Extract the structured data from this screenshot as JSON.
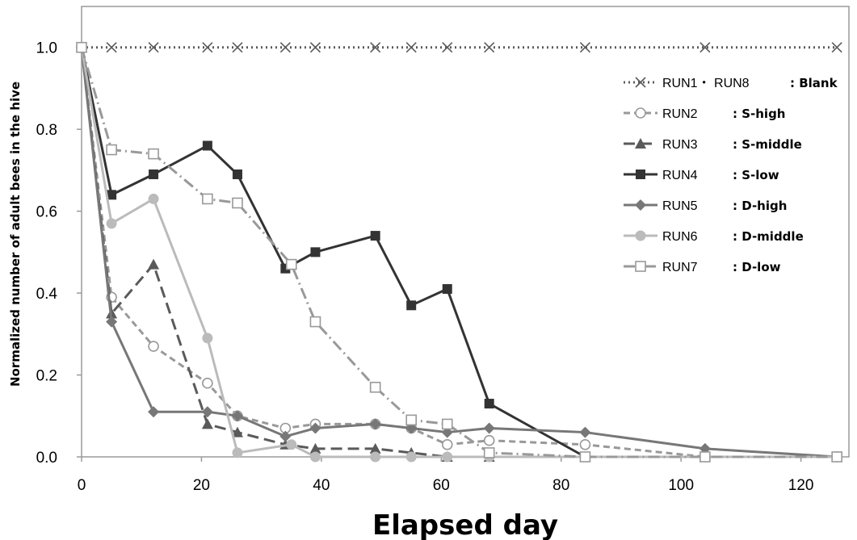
{
  "chart_data": {
    "type": "line",
    "xlabel": "Elapsed day",
    "ylabel": "Normalized number of adult bees in the hive",
    "xlim": [
      0,
      128
    ],
    "ylim": [
      0,
      1.1
    ],
    "xticks": [
      "0",
      "20",
      "40",
      "60",
      "80",
      "100",
      "120"
    ],
    "yticks": [
      "0.0",
      "0.2",
      "0.4",
      "0.6",
      "0.8",
      "1.0"
    ],
    "grid": false,
    "legend_position": "right",
    "series": [
      {
        "name": "RUN1・ RUN8",
        "condition": ": Blank",
        "color": "#5a5a5a",
        "dash": "2,4",
        "marker": "x",
        "width": 3,
        "x": [
          0,
          5,
          12,
          21,
          26,
          34,
          39,
          49,
          55,
          61,
          68,
          84,
          104,
          126
        ],
        "y": [
          1.0,
          1.0,
          1.0,
          1.0,
          1.0,
          1.0,
          1.0,
          1.0,
          1.0,
          1.0,
          1.0,
          1.0,
          1.0,
          1.0
        ]
      },
      {
        "name": "RUN2",
        "condition": ": S-high",
        "color": "#999999",
        "dash": "8,5",
        "marker": "circle-open",
        "width": 3,
        "x": [
          0,
          5,
          12,
          21,
          26,
          34,
          39,
          49,
          55,
          61,
          68,
          84,
          104,
          126
        ],
        "y": [
          1.0,
          0.39,
          0.27,
          0.18,
          0.1,
          0.07,
          0.08,
          0.08,
          0.07,
          0.03,
          0.04,
          0.03,
          0.0,
          0.0
        ]
      },
      {
        "name": "RUN3",
        "condition": ": S-middle",
        "color": "#5a5a5a",
        "dash": "14,7",
        "marker": "triangle",
        "width": 3,
        "x": [
          0,
          5,
          12,
          21,
          26,
          34,
          39,
          49,
          55,
          61,
          68,
          84,
          104,
          126
        ],
        "y": [
          1.0,
          0.35,
          0.47,
          0.08,
          0.06,
          0.03,
          0.02,
          0.02,
          0.01,
          0.0,
          0.0,
          0.0,
          0.0,
          0.0
        ]
      },
      {
        "name": "RUN4",
        "condition": ": S-low",
        "color": "#333333",
        "dash": "",
        "marker": "square",
        "width": 3,
        "x": [
          0,
          5,
          12,
          21,
          26,
          34,
          39,
          49,
          55,
          61,
          68,
          84
        ],
        "y": [
          1.0,
          0.64,
          0.69,
          0.76,
          0.69,
          0.46,
          0.5,
          0.54,
          0.37,
          0.41,
          0.13,
          0.0
        ]
      },
      {
        "name": "RUN5",
        "condition": ": D-high",
        "color": "#777777",
        "dash": "",
        "marker": "diamond",
        "width": 3,
        "x": [
          0,
          5,
          12,
          21,
          26,
          34,
          39,
          49,
          55,
          61,
          68,
          84,
          104,
          126
        ],
        "y": [
          1.0,
          0.33,
          0.11,
          0.11,
          0.1,
          0.05,
          0.07,
          0.08,
          0.07,
          0.06,
          0.07,
          0.06,
          0.02,
          0.0
        ]
      },
      {
        "name": "RUN6",
        "condition": ": D-middle",
        "color": "#bbbbbb",
        "dash": "",
        "marker": "circle",
        "width": 3,
        "x": [
          0,
          5,
          12,
          21,
          26,
          35,
          39,
          49,
          55,
          61,
          68,
          84,
          104,
          126
        ],
        "y": [
          1.0,
          0.57,
          0.63,
          0.29,
          0.01,
          0.03,
          0.0,
          0.0,
          0.0,
          0.0,
          0.0,
          0.0,
          0.0,
          0.0
        ]
      },
      {
        "name": "RUN7",
        "condition": ": D-low",
        "color": "#999999",
        "dash": "14,5,2,5",
        "marker": "square-open",
        "width": 3,
        "x": [
          0,
          5,
          12,
          21,
          26,
          35,
          39,
          49,
          55,
          61,
          68,
          84,
          104,
          126
        ],
        "y": [
          1.0,
          0.75,
          0.74,
          0.63,
          0.62,
          0.47,
          0.33,
          0.17,
          0.09,
          0.08,
          0.01,
          0.0,
          0.0,
          0.0
        ]
      }
    ]
  }
}
